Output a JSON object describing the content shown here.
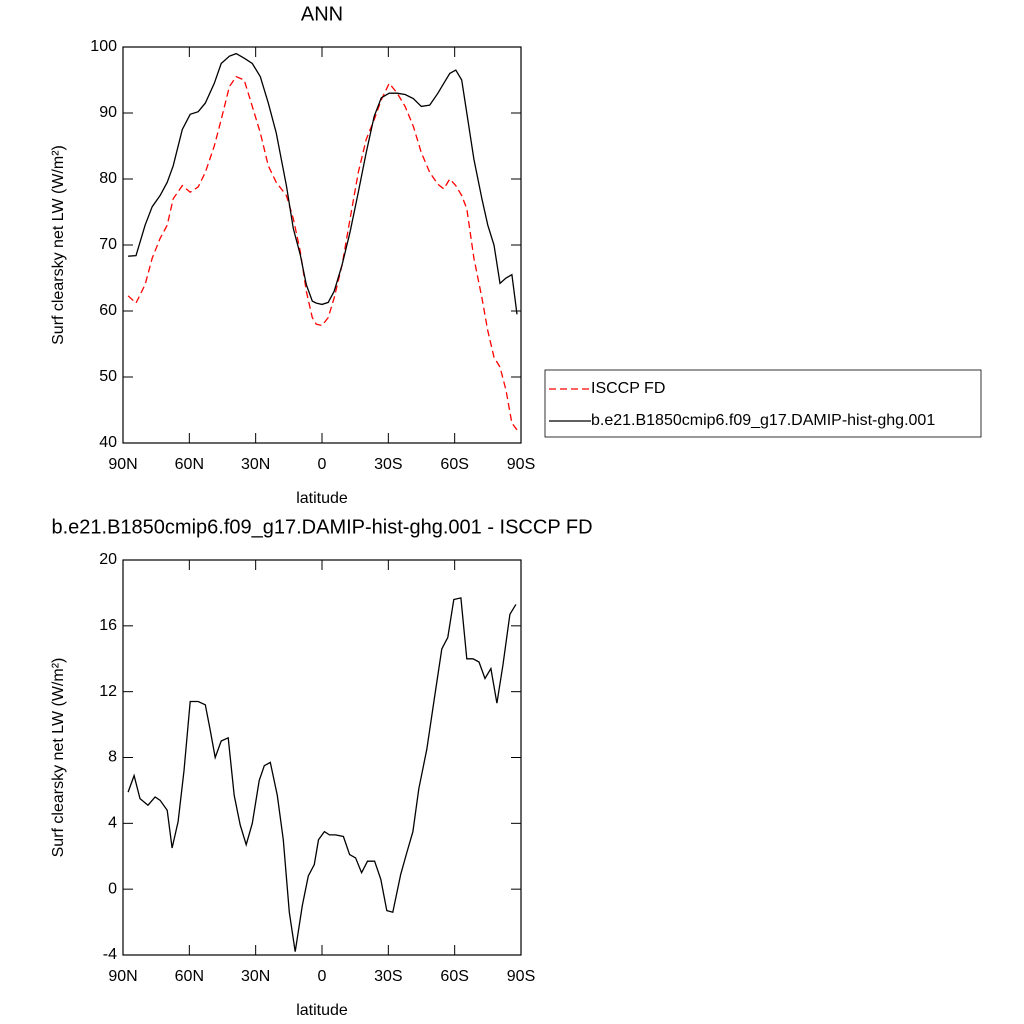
{
  "chart_data": [
    {
      "type": "line",
      "title": "ANN",
      "ylabel": "Surf clearsky net LW (W/m²)",
      "xlabel": "latitude",
      "x": [
        87.7,
        84.1,
        80.0,
        76.8,
        73.2,
        70.0,
        67.3,
        63.2,
        59.6,
        56.0,
        52.8,
        48.7,
        45.6,
        41.9,
        38.8,
        35.2,
        31.5,
        27.9,
        24.3,
        20.7,
        16.1,
        13.0,
        9.8,
        7.1,
        4.4,
        2.6,
        0,
        -2.8,
        -5.5,
        -9.1,
        -12.7,
        -16.4,
        -20.0,
        -23.6,
        -26.8,
        -30.4,
        -34.0,
        -37.6,
        -41.3,
        -44.9,
        -48.7,
        -52.4,
        -55.1,
        -57.8,
        -60.5,
        -63.2,
        -65.5,
        -68.7,
        -72.3,
        -75.0,
        -77.8,
        -80.5,
        -83.2,
        -85.9,
        -88.2
      ],
      "series": [
        {
          "name": "ISCCP FD",
          "color": "#ff0000",
          "dash": true,
          "values": [
            62.3,
            61.2,
            64,
            68,
            71,
            73,
            77,
            79,
            78,
            78.8,
            81,
            85,
            89,
            94,
            95.5,
            95,
            91,
            87,
            82,
            79.5,
            77.5,
            74,
            69,
            63,
            59,
            58,
            57.8,
            59,
            62,
            67,
            74,
            81,
            86,
            89,
            92,
            94.5,
            93,
            91,
            88,
            84,
            81,
            79.2,
            78.5,
            80,
            79,
            77.5,
            75.5,
            68,
            62,
            57,
            53,
            51.5,
            48,
            43,
            42
          ]
        },
        {
          "name": "b.e21.B1850cmip6.f09_g17.DAMIP-hist-ghg.001",
          "color": "#000000",
          "dash": false,
          "values": [
            68.3,
            68.4,
            73,
            75.8,
            77.5,
            79.5,
            82,
            87.5,
            89.8,
            90.2,
            91.5,
            94.5,
            97.5,
            98.6,
            99,
            98.3,
            97.5,
            95.5,
            91.5,
            87,
            79,
            72.5,
            68.5,
            64,
            61.5,
            61.2,
            61,
            61.3,
            63,
            67,
            72,
            78,
            84,
            89.5,
            92.3,
            93,
            93,
            92.8,
            92.2,
            91,
            91.2,
            93,
            94.5,
            96,
            96.5,
            95,
            90,
            83,
            77,
            73,
            70,
            64.2,
            65,
            65.5,
            59.5
          ]
        }
      ],
      "xlim": [
        90,
        -90
      ],
      "xticks": [
        {
          "value": 90,
          "label": "90N"
        },
        {
          "value": 60,
          "label": "60N"
        },
        {
          "value": 30,
          "label": "30N"
        },
        0,
        {
          "value": -30,
          "label": "30S"
        },
        {
          "value": -60,
          "label": "60S"
        },
        {
          "value": -90,
          "label": "90S"
        }
      ],
      "ylim": [
        40,
        100
      ],
      "yticks": [
        40,
        50,
        60,
        70,
        80,
        90,
        100
      ],
      "legend": "right"
    },
    {
      "type": "line",
      "title": "b.e21.B1850cmip6.f09_g17.DAMIP-hist-ghg.001 - ISCCP FD",
      "ylabel": "Surf clearsky net LW (W/m²)",
      "xlabel": "latitude",
      "x": [
        87.7,
        85.0,
        82.3,
        78.7,
        75.5,
        73.2,
        70.0,
        67.8,
        65.1,
        62.4,
        59.6,
        56.0,
        52.8,
        50.6,
        48.3,
        45.6,
        42.4,
        39.7,
        37.0,
        34.3,
        31.5,
        28.4,
        26.1,
        23.4,
        20.2,
        17.5,
        14.8,
        12.1,
        8.9,
        6.2,
        3.5,
        1.6,
        -1.1,
        -3.4,
        -6.1,
        -9.7,
        -12.5,
        -15.2,
        -17.9,
        -20.6,
        -23.8,
        -26.6,
        -29.3,
        -32.0,
        -35.6,
        -38.3,
        -41.1,
        -43.8,
        -47.4,
        -50.6,
        -54.2,
        -56.9,
        -59.6,
        -62.8,
        -65.5,
        -68.3,
        -71.0,
        -73.7,
        -76.4,
        -79.1,
        -81.8,
        -85.0,
        -87.7
      ],
      "series": [
        {
          "color": "#000000",
          "dash": false,
          "values": [
            5.9,
            6.9,
            5.5,
            5.1,
            5.6,
            5.4,
            4.8,
            2.5,
            4.1,
            7.2,
            11.4,
            11.4,
            11.2,
            9.7,
            8.0,
            9.0,
            9.2,
            5.7,
            3.9,
            2.7,
            4.0,
            6.6,
            7.5,
            7.7,
            5.7,
            3.0,
            -1.4,
            -3.8,
            -1.0,
            0.8,
            1.5,
            3.0,
            3.5,
            3.3,
            3.3,
            3.2,
            2.1,
            1.9,
            1.0,
            1.7,
            1.7,
            0.6,
            -1.3,
            -1.4,
            0.9,
            2.2,
            3.5,
            6.1,
            8.5,
            11.4,
            14.6,
            15.3,
            17.6,
            17.7,
            14.0,
            14.0,
            13.8,
            12.8,
            13.4,
            11.3,
            13.6,
            16.7,
            17.3
          ]
        }
      ],
      "xlim": [
        90,
        -90
      ],
      "xticks": [
        {
          "value": 90,
          "label": "90N"
        },
        {
          "value": 60,
          "label": "60N"
        },
        {
          "value": 30,
          "label": "30N"
        },
        0,
        {
          "value": -30,
          "label": "30S"
        },
        {
          "value": -60,
          "label": "60S"
        },
        {
          "value": -90,
          "label": "90S"
        }
      ],
      "ylim": [
        -4,
        20
      ],
      "yticks": [
        -4,
        0,
        4,
        8,
        12,
        16,
        20
      ]
    }
  ]
}
